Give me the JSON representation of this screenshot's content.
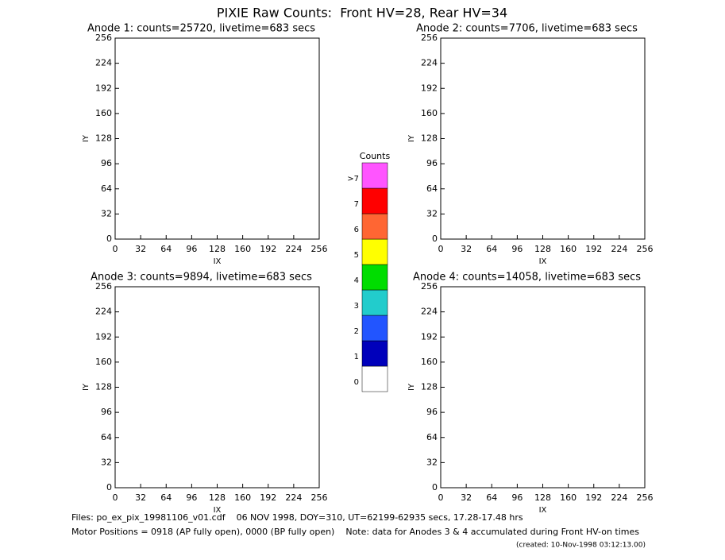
{
  "title": "PIXIE Raw Counts:  Front HV=28, Rear HV=34",
  "chart_data": [
    {
      "type": "image",
      "title": "Anode 1: counts=25720, livetime=683 secs",
      "xlabel": "IX",
      "ylabel": "IY",
      "xlim": [
        0,
        256
      ],
      "ylim": [
        0,
        256
      ],
      "xticks": [
        0,
        32,
        64,
        96,
        128,
        160,
        192,
        224,
        256
      ],
      "yticks": [
        0,
        32,
        64,
        96,
        128,
        160,
        192,
        224,
        256
      ]
    },
    {
      "type": "image",
      "title": "Anode 2: counts=7706, livetime=683 secs",
      "xlabel": "IX",
      "ylabel": "IY",
      "xlim": [
        0,
        256
      ],
      "ylim": [
        0,
        256
      ],
      "xticks": [
        0,
        32,
        64,
        96,
        128,
        160,
        192,
        224,
        256
      ],
      "yticks": [
        0,
        32,
        64,
        96,
        128,
        160,
        192,
        224,
        256
      ]
    },
    {
      "type": "image",
      "title": "Anode 3: counts=9894, livetime=683 secs",
      "xlabel": "IX",
      "ylabel": "IY",
      "xlim": [
        0,
        256
      ],
      "ylim": [
        0,
        256
      ],
      "xticks": [
        0,
        32,
        64,
        96,
        128,
        160,
        192,
        224,
        256
      ],
      "yticks": [
        0,
        32,
        64,
        96,
        128,
        160,
        192,
        224,
        256
      ]
    },
    {
      "type": "image",
      "title": "Anode 4: counts=14058, livetime=683 secs",
      "xlabel": "IX",
      "ylabel": "IY",
      "xlim": [
        0,
        256
      ],
      "ylim": [
        0,
        256
      ],
      "xticks": [
        0,
        32,
        64,
        96,
        128,
        160,
        192,
        224,
        256
      ],
      "yticks": [
        0,
        32,
        64,
        96,
        128,
        160,
        192,
        224,
        256
      ]
    }
  ],
  "colorbar": {
    "title": "Counts",
    "levels": [
      {
        "label": "0",
        "color": "#ffffff"
      },
      {
        "label": "1",
        "color": "#0000bb"
      },
      {
        "label": "2",
        "color": "#2255ff"
      },
      {
        "label": "3",
        "color": "#22cccc"
      },
      {
        "label": "4",
        "color": "#00dd00"
      },
      {
        "label": "5",
        "color": "#ffff00"
      },
      {
        "label": "6",
        "color": "#ff6633"
      },
      {
        "label": "7",
        "color": "#ff0000"
      },
      {
        "label": ">7",
        "color": "#ff55ff"
      }
    ]
  },
  "footer": [
    "Files: po_ex_pix_19981106_v01.cdf    06 NOV 1998, DOY=310, UT=62199-62935 secs, 17.28-17.48 hrs",
    "Motor Positions = 0918 (AP fully open), 0000 (BP fully open)    Note: data for Anodes 3 & 4 accumulated during Front HV-on times",
    "(created: 10-Nov-1998 03:12:13.00)"
  ]
}
